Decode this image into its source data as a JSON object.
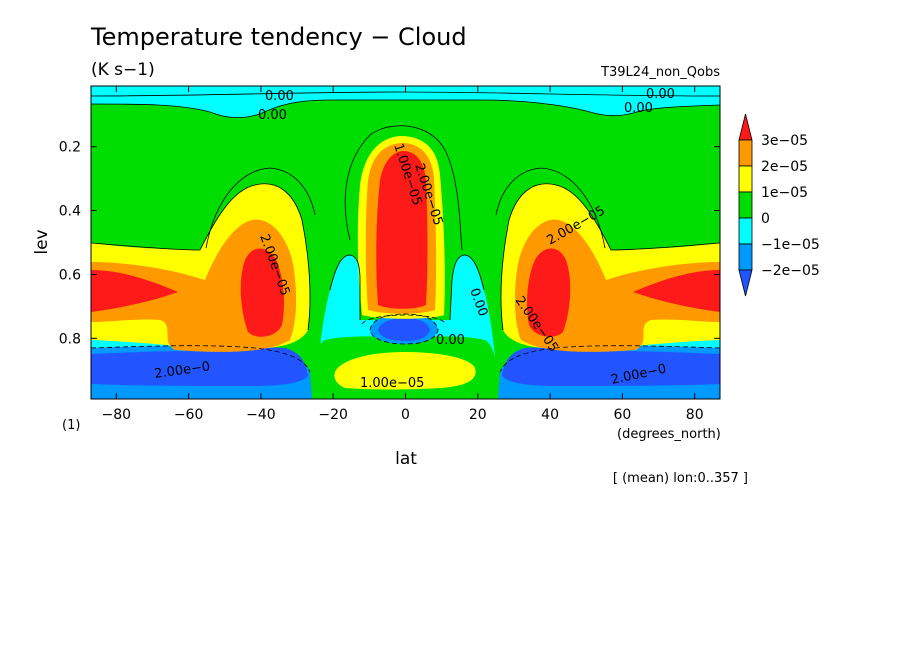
{
  "chart_data": {
    "type": "heatmap",
    "title": "Temperature tendency − Cloud",
    "units": "(K s−1)",
    "run_label": "T39L24_non_Qobs",
    "xlabel": "lat",
    "ylabel": "lev",
    "x_unit_label": "(degrees_north)",
    "y_unit_label": "(1)",
    "footer": "[ (mean) lon:0..357 ]",
    "xlim": [
      -87,
      87
    ],
    "ylim": [
      0.99,
      0.01
    ],
    "x_ticks": [
      -80,
      -60,
      -40,
      -20,
      0,
      20,
      40,
      60,
      80
    ],
    "x_tick_labels": [
      "−80",
      "−60",
      "−40",
      "−20",
      "0",
      "20",
      "40",
      "60",
      "80"
    ],
    "y_ticks": [
      0.2,
      0.4,
      0.6,
      0.8
    ],
    "y_tick_labels": [
      "0.2",
      "0.4",
      "0.6",
      "0.8"
    ],
    "colorbar": {
      "labels": [
        "3e−05",
        "2e−05",
        "1e−05",
        "0",
        "−1e−05",
        "−2e−05"
      ],
      "bins": [
        {
          "color": "#ff1a1a",
          "range": ">3e-05"
        },
        {
          "color": "#ff9900",
          "range": "2e-05..3e-05"
        },
        {
          "color": "#ffff00",
          "range": "1e-05..2e-05"
        },
        {
          "color": "#00dd00",
          "range": "0..1e-05"
        },
        {
          "color": "#00ffff",
          "range": "-1e-05..0"
        },
        {
          "color": "#0099ff",
          "range": "-2e-05..-1e-05"
        },
        {
          "color": "#2255ff",
          "range": "<-2e-05"
        }
      ]
    },
    "contour_labels": [
      "0.00",
      "0.00",
      "0.00",
      "0.00",
      "0.00",
      "0.00",
      "1.00e−05",
      "2.00e−05",
      "2.00e−05",
      "2.00e−05",
      "2.00e−05",
      "1.00e−05",
      "2.00e−0",
      "2.00e−0"
    ]
  }
}
